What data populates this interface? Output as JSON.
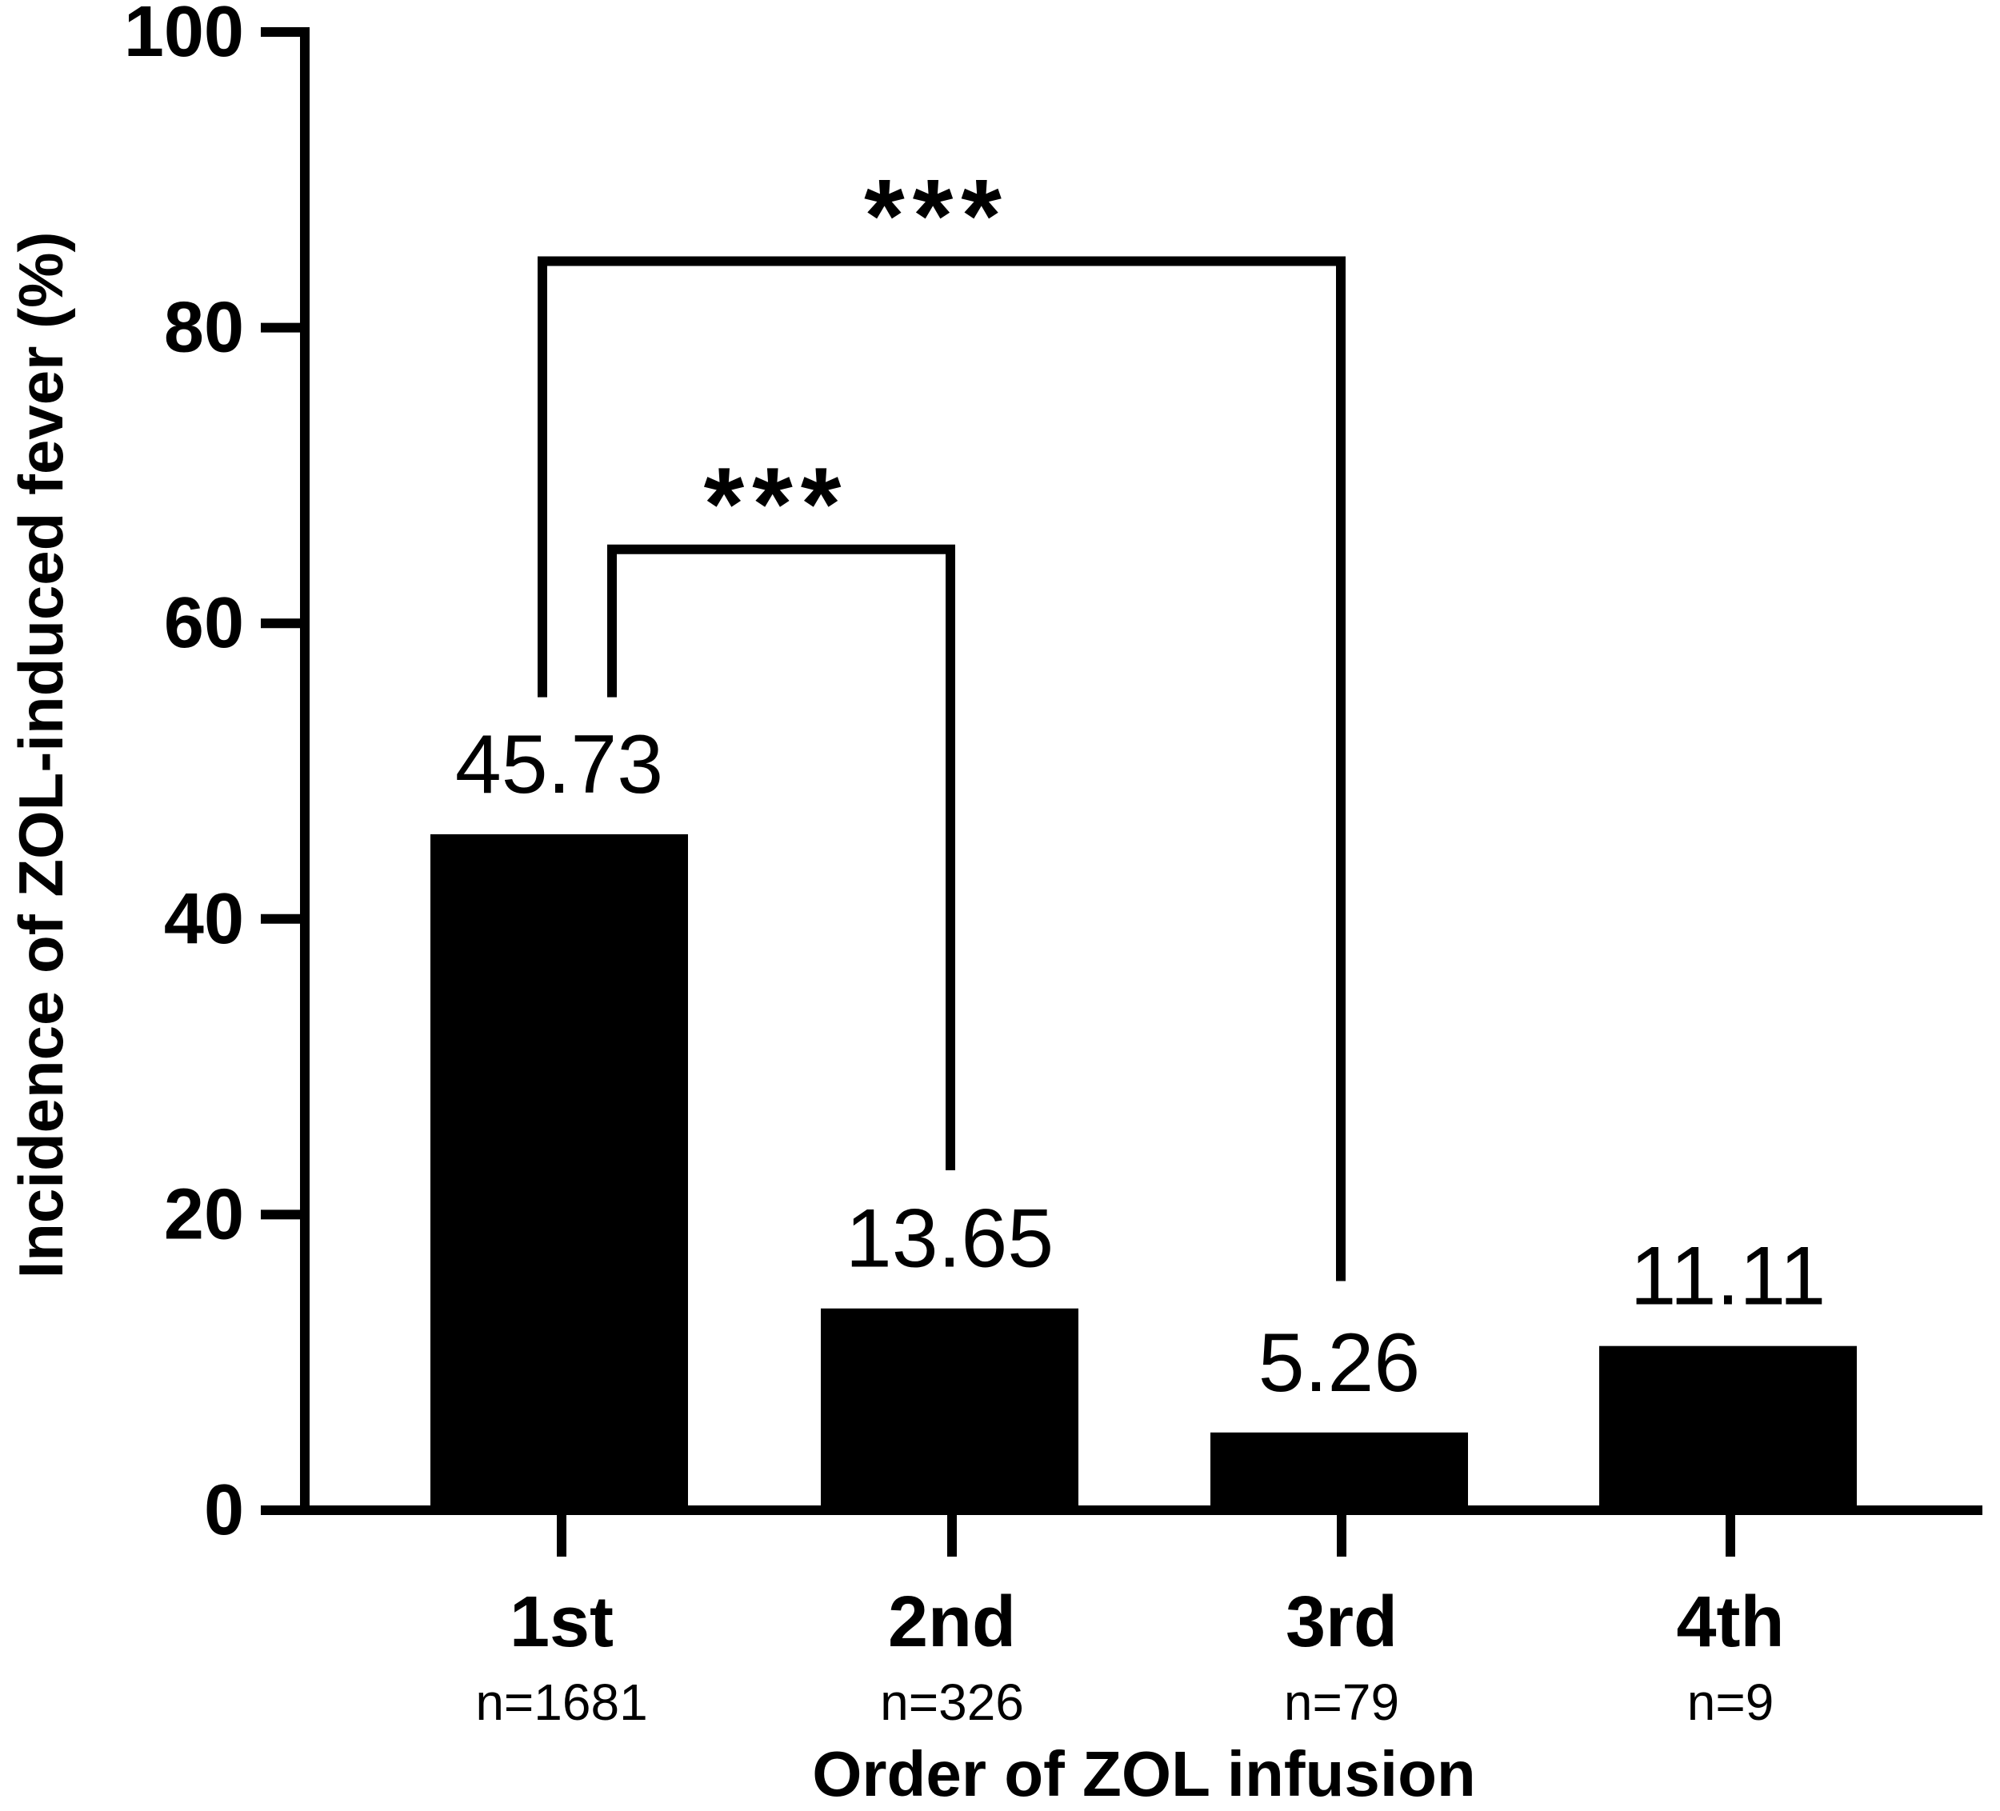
{
  "chart_data": {
    "type": "bar",
    "title": "",
    "xlabel": "Order of ZOL infusion",
    "ylabel": "Incidence of ZOL-induced fever (%)",
    "ylim": [
      0,
      100
    ],
    "yticks": [
      "0",
      "20",
      "40",
      "60",
      "80",
      "100"
    ],
    "grid": false,
    "legend": "none",
    "categories": [
      "1st",
      "2nd",
      "3rd",
      "4th"
    ],
    "sample_sizes": [
      "n=1681",
      "n=326",
      "n=79",
      "n=9"
    ],
    "values": [
      45.73,
      13.65,
      5.26,
      11.11
    ],
    "value_labels": [
      "45.73",
      "13.65",
      "5.26",
      "11.11"
    ],
    "bar_color": "#000000",
    "significance": [
      {
        "from": "1st",
        "to": "2nd",
        "label": "***",
        "bracket_y": 65,
        "left_tip_y": 55,
        "right_tip_y": 23
      },
      {
        "from": "1st",
        "to": "3rd",
        "label": "***",
        "bracket_y": 84.5,
        "left_tip_y": 55,
        "right_tip_y": 15.5
      }
    ]
  }
}
